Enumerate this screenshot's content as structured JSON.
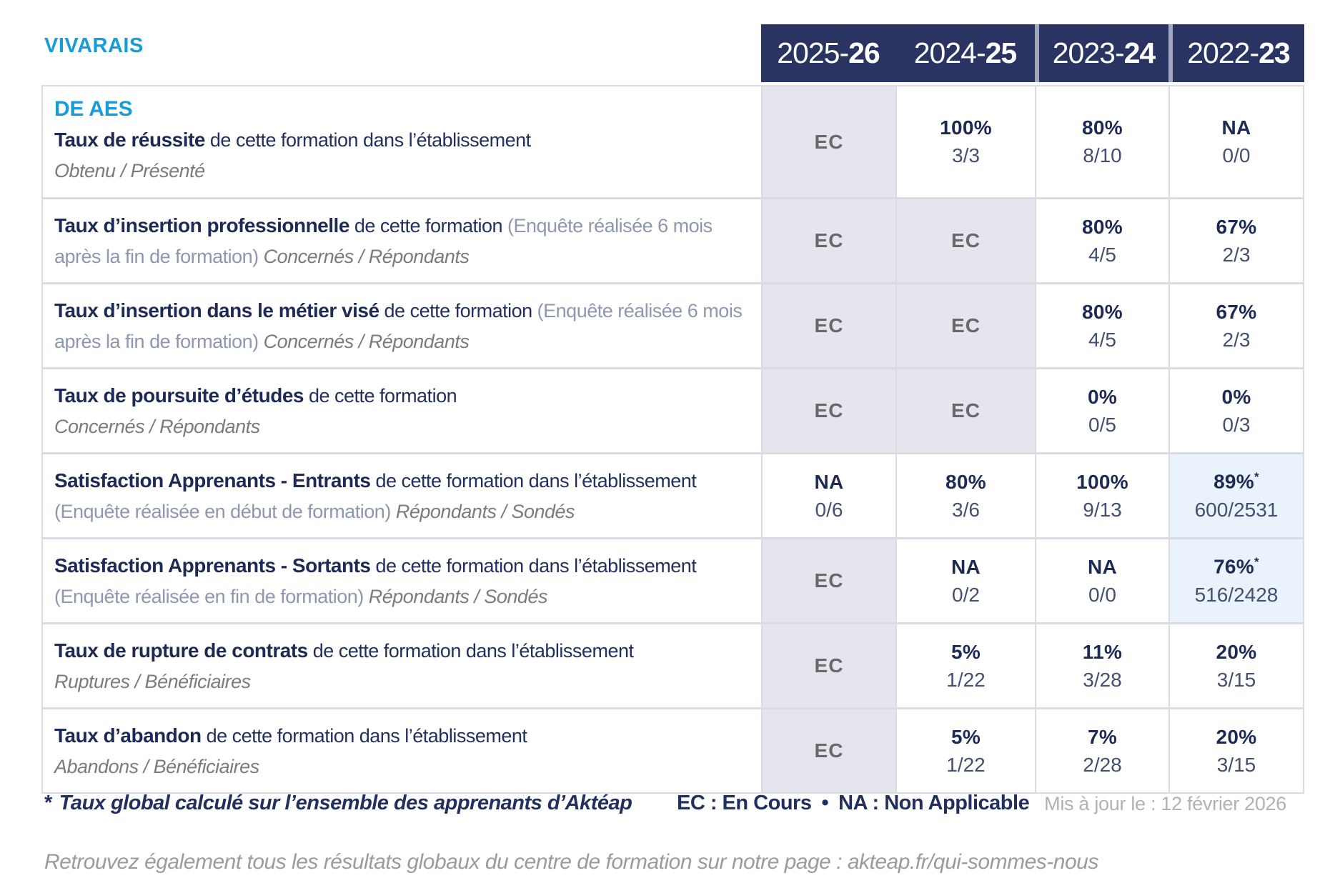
{
  "brand": {
    "name": "VIVARAIS"
  },
  "colors": {
    "accent_blue": "#189cd8",
    "navy_text": "#1d2a55",
    "header_bg": "#2a3462",
    "ec_cell_bg": "#e5e5ee",
    "highlight_cell_bg": "#eaf3fb",
    "border": "#dadbe4"
  },
  "year_columns": [
    {
      "prefix": "2025-",
      "suffix": "26"
    },
    {
      "prefix": "2024-",
      "suffix": "25"
    },
    {
      "prefix": "2023-",
      "suffix": "24"
    },
    {
      "prefix": "2022-",
      "suffix": "23"
    }
  ],
  "rows": [
    {
      "heading": "DE AES",
      "title": "Taux de réussite",
      "desc": " de cette formation dans l’établissement",
      "paren": "",
      "sub": "Obtenu / Présenté",
      "cells": [
        {
          "value": "EC",
          "fraction": ""
        },
        {
          "value": "100%",
          "fraction": "3/3"
        },
        {
          "value": "80%",
          "fraction": "8/10"
        },
        {
          "value": "NA",
          "fraction": "0/0"
        }
      ]
    },
    {
      "heading": "",
      "title": "Taux d’insertion professionnelle",
      "desc": " de cette formation ",
      "paren": "(Enquête réalisée 6 mois après la fin de formation) ",
      "sub": "Concernés / Répondants",
      "cells": [
        {
          "value": "EC",
          "fraction": ""
        },
        {
          "value": "EC",
          "fraction": ""
        },
        {
          "value": "80%",
          "fraction": "4/5"
        },
        {
          "value": "67%",
          "fraction": "2/3"
        }
      ]
    },
    {
      "heading": "",
      "title": "Taux d’insertion dans le métier visé",
      "desc": " de cette formation ",
      "paren": "(Enquête réalisée 6 mois après la fin de formation) ",
      "sub": "Concernés / Répondants",
      "cells": [
        {
          "value": "EC",
          "fraction": ""
        },
        {
          "value": "EC",
          "fraction": ""
        },
        {
          "value": "80%",
          "fraction": "4/5"
        },
        {
          "value": "67%",
          "fraction": "2/3"
        }
      ]
    },
    {
      "heading": "",
      "title": "Taux de poursuite d’études",
      "desc": " de cette formation",
      "paren": "",
      "sub": "Concernés / Répondants",
      "cells": [
        {
          "value": "EC",
          "fraction": ""
        },
        {
          "value": "EC",
          "fraction": ""
        },
        {
          "value": "0%",
          "fraction": "0/5"
        },
        {
          "value": "0%",
          "fraction": "0/3"
        }
      ]
    },
    {
      "heading": "",
      "title": "Satisfaction Apprenants - Entrants",
      "desc": " de cette formation dans l’établissement ",
      "paren": "(Enquête réalisée en début de formation) ",
      "sub": "Répondants / Sondés",
      "cells": [
        {
          "value": "NA",
          "fraction": "0/6"
        },
        {
          "value": "80%",
          "fraction": "3/6"
        },
        {
          "value": "100%",
          "fraction": "9/13"
        },
        {
          "value": "89%",
          "star": "*",
          "fraction": "600/2531"
        }
      ]
    },
    {
      "heading": "",
      "title": "Satisfaction Apprenants - Sortants",
      "desc": " de cette formation dans l’établissement ",
      "paren": "(Enquête réalisée en fin de formation) ",
      "sub": "Répondants / Sondés",
      "cells": [
        {
          "value": "EC",
          "fraction": ""
        },
        {
          "value": "NA",
          "fraction": "0/2"
        },
        {
          "value": "NA",
          "fraction": "0/0"
        },
        {
          "value": "76%",
          "star": "*",
          "fraction": "516/2428"
        }
      ]
    },
    {
      "heading": "",
      "title": "Taux de rupture de contrats",
      "desc": " de cette formation dans l’établissement",
      "paren": "",
      "sub": "Ruptures / Bénéficiaires",
      "cells": [
        {
          "value": "EC",
          "fraction": ""
        },
        {
          "value": "5%",
          "fraction": "1/22"
        },
        {
          "value": "11%",
          "fraction": "3/28"
        },
        {
          "value": "20%",
          "fraction": "3/15"
        }
      ]
    },
    {
      "heading": "",
      "title": "Taux d’abandon",
      "desc": " de cette formation dans l’établissement",
      "paren": "",
      "sub": "Abandons / Bénéficiaires",
      "cells": [
        {
          "value": "EC",
          "fraction": ""
        },
        {
          "value": "5%",
          "fraction": "1/22"
        },
        {
          "value": "7%",
          "fraction": "2/28"
        },
        {
          "value": "20%",
          "fraction": "3/15"
        }
      ]
    }
  ],
  "footnote": {
    "star": "*",
    "note": "Taux global calculé sur l’ensemble des apprenants d’Aktéap",
    "legend_ec": "EC : En Cours",
    "bullet": "•",
    "legend_na": "NA : Non Applicable",
    "updated": "Mis à jour le : 12 février 2026"
  },
  "footer_note": "Retrouvez également tous les résultats globaux du centre de formation sur notre page : akteap.fr/qui-sommes-nous"
}
